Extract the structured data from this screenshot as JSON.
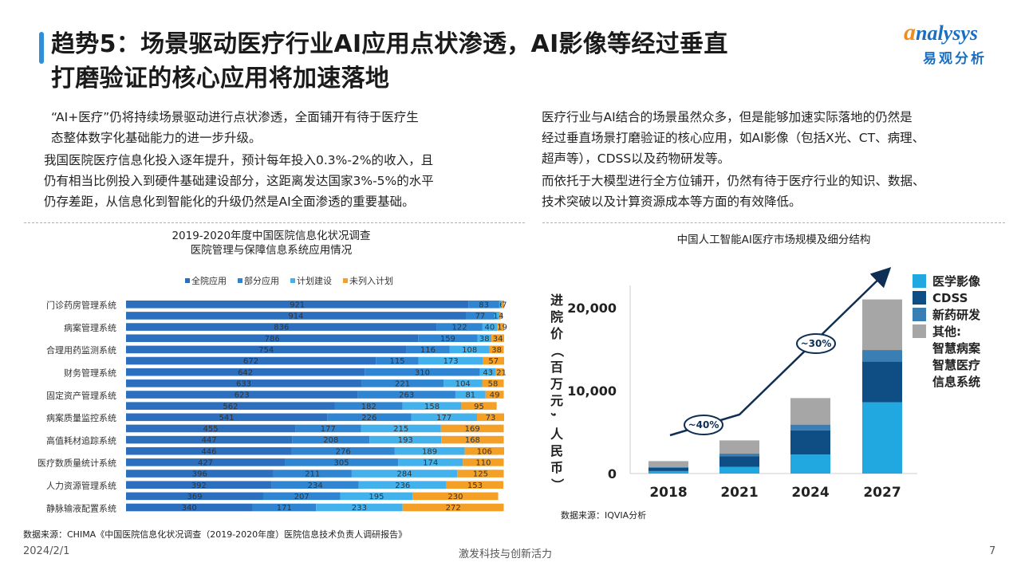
{
  "header": {
    "title_line1": "趋势5：场景驱动医疗行业AI应用点状渗透，AI影像等经过垂直",
    "title_line2": "打磨验证的核心应用将加速落地",
    "logo_top_rest": "nalysys",
    "logo_bottom": "易观分析"
  },
  "left_text": {
    "p1_line1": "“AI+医疗”仍将持续场景驱动进行点状渗透，全面铺开有待于医疗生",
    "p1_line2": "态整体数字化基础能力的进一步升级。",
    "p2_line1": "我国医院医疗信息化投入逐年提升，预计每年投入0.3%-2%的收入，且",
    "p2_line2": "仍有相当比例投入到硬件基础建设部分，这距离发达国家3%-5%的水平",
    "p2_line3": "仍存差距，从信息化到智能化的升级仍然是AI全面渗透的重要基础。"
  },
  "right_text": {
    "p1_line1": "医疗行业与AI结合的场景虽然众多，但是能够加速实际落地的仍然是",
    "p1_line2": "经过垂直场景打磨验证的核心应用，如AI影像（包括X光、CT、病理、",
    "p1_line3": "超声等），CDSS以及药物研发等。",
    "p2_line1": "而依托于大模型进行全方位铺开，仍然有待于医疗行业的知识、数据、",
    "p2_line2": "技术突破以及计算资源成本等方面的有效降低。"
  },
  "chart_data": [
    {
      "type": "bar",
      "orientation": "horizontal",
      "stacked": true,
      "title": "2019-2020年度中国医院信息化状况调查",
      "subtitle": "医院管理与保障信息系统应用情况",
      "legend_position": "top",
      "series": [
        {
          "name": "全院应用",
          "color": "#2c6fbe",
          "values": [
            921,
            914,
            836,
            786,
            754,
            672,
            642,
            633,
            623,
            562,
            541,
            455,
            447,
            446,
            427,
            396,
            392,
            369,
            340
          ]
        },
        {
          "name": "部分应用",
          "color": "#2f85d2",
          "values": [
            83,
            77,
            122,
            159,
            116,
            115,
            310,
            221,
            263,
            182,
            226,
            177,
            208,
            276,
            305,
            211,
            234,
            207,
            171
          ]
        },
        {
          "name": "计划建设",
          "color": "#43b1ec",
          "values": [
            6,
            12,
            40,
            38,
            108,
            173,
            43,
            104,
            81,
            158,
            177,
            215,
            193,
            189,
            174,
            284,
            236,
            195,
            233
          ]
        },
        {
          "name": "未列入计划",
          "color": "#f4a026",
          "values": [
            7,
            4,
            19,
            34,
            38,
            57,
            21,
            58,
            49,
            95,
            73,
            169,
            168,
            106,
            110,
            125,
            153,
            230,
            272
          ]
        }
      ],
      "labeled_categories": [
        "门诊药房管理系统",
        "病案管理系统",
        "合理用药监测系统",
        "财务管理系统",
        "固定资产管理系统",
        "病案质量监控系统",
        "高值耗材追踪系统",
        "医疗数质量统计系统",
        "人力资源管理系统",
        "静脉输液配置系统"
      ],
      "xmax": 1017
    },
    {
      "type": "bar",
      "stacked": true,
      "title": "中国人工智能AI医疗市场规模及细分结构",
      "ylabel": "进院价（百万元，人民币）",
      "categories": [
        "2018",
        "2021",
        "2024",
        "2027"
      ],
      "ylim": [
        0,
        22000
      ],
      "yticks": [
        {
          "value": 0,
          "label": "0"
        },
        {
          "value": 10000,
          "label": "10,000"
        },
        {
          "value": 20000,
          "label": "20,000"
        }
      ],
      "series": [
        {
          "name": "医学影像",
          "color": "#22a8e0",
          "values": [
            300,
            800,
            2300,
            8600
          ]
        },
        {
          "name": "CDSS",
          "color": "#0e4e85",
          "values": [
            400,
            1300,
            2900,
            4900
          ]
        },
        {
          "name": "新药研发",
          "color": "#3a7fb4",
          "values": [
            100,
            300,
            700,
            1400
          ]
        },
        {
          "name": "其他:",
          "extra": [
            "智慧病案",
            "智慧医疗",
            "信息系统"
          ],
          "color": "#a6a6a6",
          "values": [
            700,
            1600,
            3200,
            6100
          ]
        }
      ],
      "annotations": [
        "~40%",
        "~30%"
      ],
      "legend_position": "right"
    }
  ],
  "sources": {
    "right": "数据来源：IQVIA分析",
    "left": "数据来源：CHIMA《中国医院信息化状况调查（2019-2020年度）医院信息技术负责人调研报告》"
  },
  "footer": {
    "date": "2024/2/1",
    "slogan": "激发科技与创新活力",
    "page": "7"
  }
}
